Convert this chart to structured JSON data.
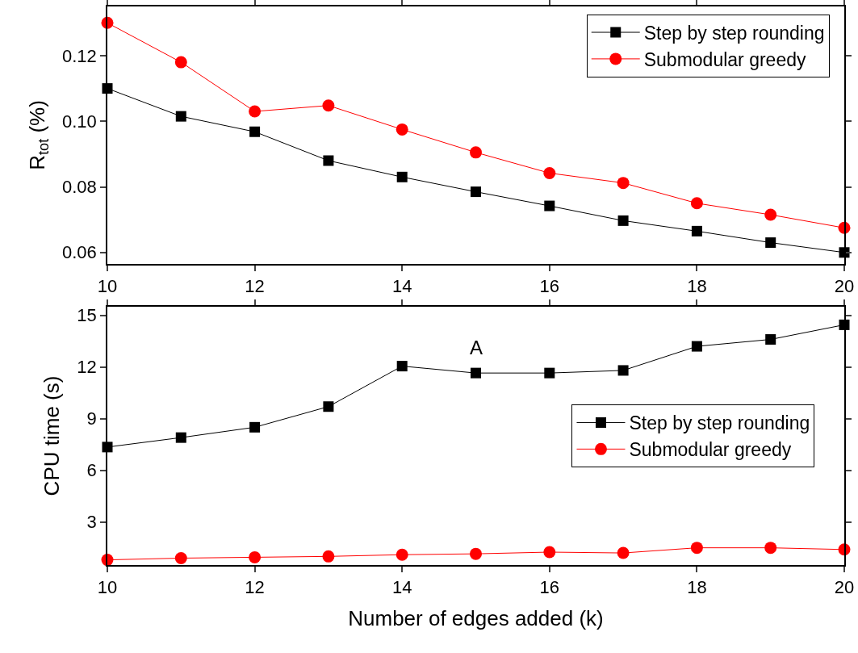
{
  "chart_data": [
    {
      "type": "line",
      "x": [
        10,
        11,
        12,
        13,
        14,
        15,
        16,
        17,
        18,
        19,
        20
      ],
      "ylabel": "R$_{tot}$ (%)",
      "xlim": [
        10,
        20
      ],
      "xticks": [
        10,
        12,
        14,
        16,
        18,
        20
      ],
      "ylim": [
        0.0565,
        0.135
      ],
      "yticks": [
        {
          "value": 0.06,
          "label": "0.06"
        },
        {
          "value": 0.08,
          "label": "0.08"
        },
        {
          "value": 0.1,
          "label": "0.10"
        },
        {
          "value": 0.12,
          "label": "0.12"
        }
      ],
      "grid": false,
      "legend": "top right",
      "line_style": "solid",
      "series": [
        {
          "name": "Step by step rounding",
          "color": "#000000",
          "marker": "square",
          "values": [
            0.11,
            0.1015,
            0.0968,
            0.088,
            0.083,
            0.0785,
            0.0742,
            0.0697,
            0.0665,
            0.063,
            0.06
          ]
        },
        {
          "name": "Submodular greedy",
          "color": "#ff0000",
          "marker": "circle",
          "values": [
            0.13,
            0.118,
            0.103,
            0.1048,
            0.0975,
            0.0905,
            0.0842,
            0.0812,
            0.075,
            0.0715,
            0.0675
          ]
        }
      ]
    },
    {
      "type": "line",
      "x": [
        10,
        11,
        12,
        13,
        14,
        15,
        16,
        17,
        18,
        19,
        20
      ],
      "xlabel": "Number of edges added (k)",
      "ylabel": "CPU time (s)",
      "annotations": [
        "A"
      ],
      "xlim": [
        10,
        20
      ],
      "xticks": [
        10,
        12,
        14,
        16,
        18,
        20
      ],
      "ylim": [
        0.5,
        15.5
      ],
      "yticks": [
        3,
        6,
        9,
        12,
        15
      ],
      "grid": false,
      "legend": "right",
      "line_style": "solid",
      "series": [
        {
          "name": "Step by step rounding",
          "color": "#000000",
          "marker": "square",
          "values": [
            7.35,
            7.9,
            8.5,
            9.7,
            12.05,
            11.65,
            11.65,
            11.8,
            13.2,
            13.6,
            14.45
          ]
        },
        {
          "name": "Submodular greedy",
          "color": "#ff0000",
          "marker": "circle",
          "values": [
            0.8,
            0.9,
            0.95,
            1.0,
            1.1,
            1.15,
            1.25,
            1.2,
            1.5,
            1.5,
            1.4
          ]
        }
      ]
    }
  ]
}
